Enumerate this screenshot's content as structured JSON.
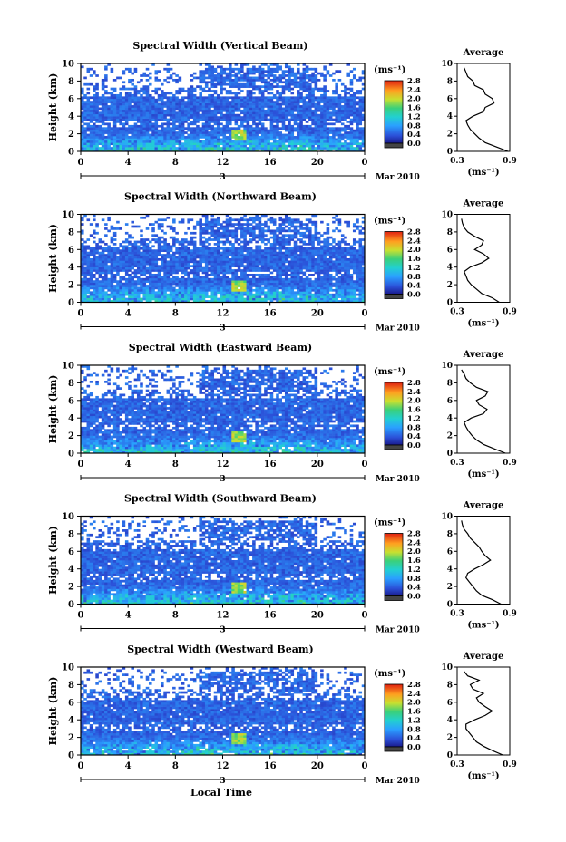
{
  "figure": {
    "xlabel": "Local Time",
    "date_label": "Mar 2010",
    "date_day": "3",
    "x_ticks": [
      "0",
      "4",
      "8",
      "12",
      "16",
      "20",
      "0"
    ],
    "y_ticks": [
      "0",
      "2",
      "4",
      "6",
      "8",
      "10"
    ],
    "ylabel": "Height (km)",
    "colorbar_unit": "(ms⁻¹)",
    "colorbar_ticks": [
      "0.0",
      "0.4",
      "0.8",
      "1.2",
      "1.6",
      "2.0",
      "2.4",
      "2.8"
    ],
    "avg_title": "Average",
    "avg_x_ticks": [
      "0.3",
      "0.9"
    ],
    "avg_xlabel": "(ms⁻¹)",
    "avg_y_ticks": [
      "0",
      "2",
      "4",
      "6",
      "8",
      "10"
    ]
  },
  "chart_data": [
    {
      "type": "heatmap",
      "title": "Spectral Width (Vertical Beam)",
      "xlabel": "Local Time",
      "ylabel": "Height (km)",
      "xlim": [
        0,
        24
      ],
      "ylim": [
        0,
        10
      ],
      "color_scale": {
        "label": "(ms⁻¹)",
        "range": [
          0.0,
          2.8
        ]
      },
      "profile": {
        "title": "Average",
        "xlabel": "(ms⁻¹)",
        "xlim": [
          0.3,
          0.9
        ],
        "height": [
          0,
          0.5,
          1,
          1.5,
          2,
          2.5,
          3,
          3.5,
          4,
          4.5,
          5,
          5.5,
          6,
          6.5,
          7,
          7.5,
          8,
          8.5,
          9,
          9.5
        ],
        "value": [
          0.88,
          0.75,
          0.62,
          0.55,
          0.5,
          0.45,
          0.42,
          0.4,
          0.48,
          0.6,
          0.62,
          0.72,
          0.7,
          0.62,
          0.6,
          0.5,
          0.48,
          0.42,
          0.4,
          0.38
        ]
      }
    },
    {
      "type": "heatmap",
      "title": "Spectral Width (Northward Beam)",
      "xlabel": "Local Time",
      "ylabel": "Height (km)",
      "xlim": [
        0,
        24
      ],
      "ylim": [
        0,
        10
      ],
      "color_scale": {
        "label": "(ms⁻¹)",
        "range": [
          0.0,
          2.8
        ]
      },
      "profile": {
        "title": "Average",
        "xlabel": "(ms⁻¹)",
        "xlim": [
          0.3,
          0.9
        ],
        "height": [
          0,
          0.5,
          1,
          1.5,
          2,
          2.5,
          3,
          3.5,
          4,
          4.5,
          5,
          5.5,
          6,
          6.5,
          7,
          7.5,
          8,
          8.5,
          9,
          9.5
        ],
        "value": [
          0.78,
          0.7,
          0.58,
          0.52,
          0.46,
          0.42,
          0.4,
          0.38,
          0.45,
          0.58,
          0.66,
          0.6,
          0.5,
          0.58,
          0.6,
          0.5,
          0.42,
          0.38,
          0.36,
          0.35
        ]
      }
    },
    {
      "type": "heatmap",
      "title": "Spectral Width (Eastward Beam)",
      "xlabel": "Local Time",
      "ylabel": "Height (km)",
      "xlim": [
        0,
        24
      ],
      "ylim": [
        0,
        10
      ],
      "color_scale": {
        "label": "(ms⁻¹)",
        "range": [
          0.0,
          2.8
        ]
      },
      "profile": {
        "title": "Average",
        "xlabel": "(ms⁻¹)",
        "xlim": [
          0.3,
          0.9
        ],
        "height": [
          0,
          0.5,
          1,
          1.5,
          2,
          2.5,
          3,
          3.5,
          4,
          4.5,
          5,
          5.5,
          6,
          6.5,
          7,
          7.5,
          8,
          8.5,
          9,
          9.5
        ],
        "value": [
          0.85,
          0.72,
          0.6,
          0.52,
          0.47,
          0.43,
          0.4,
          0.38,
          0.46,
          0.6,
          0.64,
          0.55,
          0.52,
          0.62,
          0.65,
          0.52,
          0.45,
          0.4,
          0.38,
          0.35
        ]
      }
    },
    {
      "type": "heatmap",
      "title": "Spectral Width (Southward Beam)",
      "xlabel": "Local Time",
      "ylabel": "Height (km)",
      "xlim": [
        0,
        24
      ],
      "ylim": [
        0,
        10
      ],
      "color_scale": {
        "label": "(ms⁻¹)",
        "range": [
          0.0,
          2.8
        ]
      },
      "profile": {
        "title": "Average",
        "xlabel": "(ms⁻¹)",
        "xlim": [
          0.3,
          0.9
        ],
        "height": [
          0,
          0.5,
          1,
          1.5,
          2,
          2.5,
          3,
          3.5,
          4,
          4.5,
          5,
          5.5,
          6,
          6.5,
          7,
          7.5,
          8,
          8.5,
          9,
          9.5
        ],
        "value": [
          0.8,
          0.7,
          0.58,
          0.52,
          0.48,
          0.44,
          0.4,
          0.42,
          0.5,
          0.6,
          0.68,
          0.62,
          0.58,
          0.55,
          0.5,
          0.45,
          0.42,
          0.38,
          0.36,
          0.35
        ]
      }
    },
    {
      "type": "heatmap",
      "title": "Spectral Width (Westward Beam)",
      "xlabel": "Local Time",
      "ylabel": "Height (km)",
      "xlim": [
        0,
        24
      ],
      "ylim": [
        0,
        10
      ],
      "color_scale": {
        "label": "(ms⁻¹)",
        "range": [
          0.0,
          2.8
        ]
      },
      "profile": {
        "title": "Average",
        "xlabel": "(ms⁻¹)",
        "xlim": [
          0.3,
          0.9
        ],
        "height": [
          0,
          0.5,
          1,
          1.5,
          2,
          2.5,
          3,
          3.5,
          4,
          4.5,
          5,
          5.5,
          6,
          6.5,
          7,
          7.5,
          8,
          8.5,
          9,
          9.5
        ],
        "value": [
          0.82,
          0.7,
          0.6,
          0.52,
          0.48,
          0.44,
          0.4,
          0.4,
          0.5,
          0.62,
          0.7,
          0.62,
          0.55,
          0.52,
          0.6,
          0.48,
          0.45,
          0.55,
          0.42,
          0.38
        ]
      }
    }
  ]
}
